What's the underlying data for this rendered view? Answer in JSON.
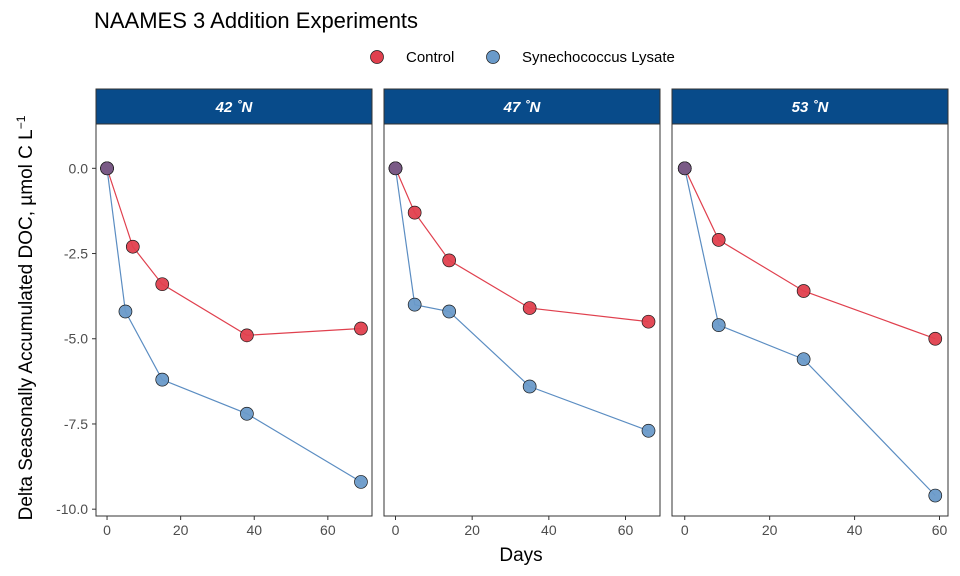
{
  "chart_data": {
    "type": "line",
    "title": "NAAMES 3 Addition Experiments",
    "xlabel": "Days",
    "ylabel": "Delta Seasonally Accumulated DOC, µmol C L",
    "ylabel_superscript": "−1",
    "ylim": [
      -10.2,
      1.3
    ],
    "y_ticks": [
      0,
      -2.5,
      -5,
      -7.5,
      -10
    ],
    "y_tick_labels": [
      "0.0",
      "-2.5",
      "-5.0",
      "-7.5",
      "-10.0"
    ],
    "legend": {
      "position": "top"
    },
    "colors": {
      "Control": "#E0404E",
      "Synechococcus Lysate": "#6A9AC9",
      "strip": "#084B8A",
      "line_control": "#E0404E",
      "line_lysate": "#5B8DC2"
    },
    "series_names": [
      "Control",
      "Synechococcus Lysate"
    ],
    "panels": [
      {
        "label": "42 ˚N",
        "xlim": [
          -3,
          72
        ],
        "x_ticks": [
          0,
          20,
          40,
          60
        ],
        "series": [
          {
            "name": "Control",
            "x": [
              0,
              7,
              15,
              38,
              69
            ],
            "y": [
              0,
              -2.3,
              -3.4,
              -4.9,
              -4.7
            ]
          },
          {
            "name": "Synechococcus Lysate",
            "x": [
              0,
              5,
              15,
              38,
              69
            ],
            "y": [
              0,
              -4.2,
              -6.2,
              -7.2,
              -9.2
            ]
          }
        ]
      },
      {
        "label": "47 ˚N",
        "xlim": [
          -3,
          69
        ],
        "x_ticks": [
          0,
          20,
          40,
          60
        ],
        "series": [
          {
            "name": "Control",
            "x": [
              0,
              5,
              14,
              35,
              66
            ],
            "y": [
              0,
              -1.3,
              -2.7,
              -4.1,
              -4.5
            ]
          },
          {
            "name": "Synechococcus Lysate",
            "x": [
              0,
              5,
              14,
              35,
              66
            ],
            "y": [
              0,
              -4.0,
              -4.2,
              -6.4,
              -7.7
            ]
          }
        ]
      },
      {
        "label": "53 ˚N",
        "xlim": [
          -3,
          62
        ],
        "x_ticks": [
          0,
          20,
          40,
          60
        ],
        "series": [
          {
            "name": "Control",
            "x": [
              0,
              8,
              28,
              59
            ],
            "y": [
              0,
              -2.1,
              -3.6,
              -5.0
            ]
          },
          {
            "name": "Synechococcus Lysate",
            "x": [
              0,
              8,
              28,
              59
            ],
            "y": [
              0,
              -4.6,
              -5.6,
              -9.6
            ]
          }
        ]
      }
    ]
  }
}
